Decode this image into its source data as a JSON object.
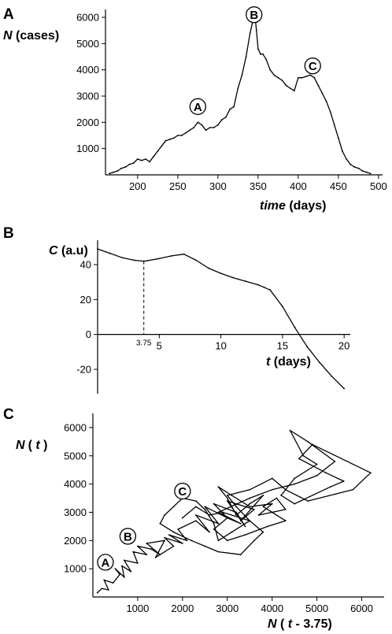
{
  "chart_data": [
    {
      "panel": "A",
      "type": "line",
      "ylabel_var": "N",
      "ylabel_rest": " (cases)",
      "xlabel_var": "time",
      "xlabel_rest": " (days)",
      "xlim": [
        160,
        505
      ],
      "ylim": [
        0,
        6300
      ],
      "xticks": [
        200,
        250,
        300,
        350,
        400,
        450,
        500
      ],
      "yticks": [
        1000,
        2000,
        3000,
        4000,
        5000,
        6000
      ],
      "markers": [
        {
          "label": "A",
          "x": 275,
          "y": 2600
        },
        {
          "label": "B",
          "x": 345,
          "y": 6100
        },
        {
          "label": "C",
          "x": 418,
          "y": 4150
        }
      ],
      "x": [
        165,
        170,
        175,
        180,
        185,
        190,
        195,
        200,
        205,
        210,
        215,
        220,
        225,
        230,
        235,
        240,
        245,
        250,
        255,
        260,
        265,
        270,
        275,
        280,
        285,
        290,
        295,
        300,
        305,
        310,
        315,
        320,
        325,
        330,
        335,
        340,
        343,
        346,
        348,
        350,
        353,
        356,
        360,
        365,
        370,
        375,
        380,
        385,
        390,
        395,
        400,
        405,
        410,
        415,
        420,
        425,
        430,
        435,
        440,
        445,
        450,
        455,
        460,
        465,
        470,
        475,
        480,
        485,
        490
      ],
      "series": [
        {
          "values": [
            50,
            100,
            150,
            250,
            300,
            400,
            450,
            600,
            550,
            600,
            500,
            700,
            900,
            1100,
            1300,
            1350,
            1400,
            1500,
            1500,
            1600,
            1700,
            1800,
            2000,
            1900,
            1700,
            1800,
            1800,
            1900,
            2100,
            2200,
            2500,
            2600,
            3300,
            3800,
            4500,
            5400,
            5800,
            6100,
            5500,
            4800,
            4600,
            4600,
            4400,
            4000,
            3800,
            3700,
            3600,
            3400,
            3300,
            3200,
            3700,
            3700,
            3750,
            3800,
            3700,
            3400,
            3100,
            2800,
            2400,
            1900,
            1400,
            900,
            600,
            400,
            300,
            250,
            150,
            100,
            50
          ]
        }
      ]
    },
    {
      "panel": "B",
      "type": "line",
      "ylabel_var": "C",
      "ylabel_rest": " (a.u)",
      "xlabel_var": "t",
      "xlabel_rest": " (days)",
      "xlim": [
        0,
        20.5
      ],
      "ylim": [
        -34,
        54
      ],
      "xticks": [
        5,
        10,
        15,
        20
      ],
      "yticks": [
        -20,
        0,
        20,
        40
      ],
      "annotation": {
        "x": 3.75,
        "label": "3.75"
      },
      "x": [
        0,
        1,
        2,
        3,
        3.75,
        4,
        5,
        6,
        7,
        8,
        9,
        10,
        11,
        12,
        13,
        13.5,
        14,
        15,
        16,
        17,
        18,
        19,
        20
      ],
      "series": [
        {
          "values": [
            49,
            46.5,
            44,
            42.5,
            42,
            42.2,
            43.5,
            45,
            46,
            42.5,
            38,
            35,
            32.5,
            30.5,
            28.5,
            27,
            25.5,
            16,
            4,
            -7,
            -16,
            -24,
            -31
          ]
        }
      ]
    },
    {
      "panel": "C",
      "type": "line",
      "ylabel_var": "N",
      "ylabel_paren": "( ",
      "ylabel_t": "t",
      "ylabel_close": " )",
      "xlabel_var": "N",
      "xlabel_paren": " ( ",
      "xlabel_t": "t",
      "xlabel_rest": " - 3.75)",
      "xlim": [
        0,
        6500
      ],
      "ylim": [
        0,
        6500
      ],
      "xticks": [
        1000,
        2000,
        3000,
        4000,
        5000,
        6000
      ],
      "yticks": [
        1000,
        2000,
        3000,
        4000,
        5000,
        6000
      ],
      "markers": [
        {
          "label": "A",
          "x": 280,
          "y": 1230
        },
        {
          "label": "B",
          "x": 780,
          "y": 2150
        },
        {
          "label": "C",
          "x": 2000,
          "y": 3750
        }
      ],
      "x": [
        100,
        200,
        350,
        250,
        450,
        600,
        500,
        700,
        650,
        850,
        700,
        1000,
        900,
        1200,
        1000,
        1300,
        1500,
        1200,
        1600,
        1400,
        1800,
        1600,
        2000,
        1700,
        2100,
        1900,
        2300,
        2600,
        2300,
        2800,
        2500,
        3000,
        2700,
        3200,
        3400,
        3000,
        3600,
        3300,
        3800,
        3500,
        3200,
        3000,
        2800,
        3100,
        3500,
        4000,
        3700,
        4300,
        4100,
        3800,
        4300,
        3900,
        3400,
        3000,
        2700,
        3000,
        3300,
        2800,
        3500,
        4000,
        4500,
        5000,
        5400,
        4800,
        4400,
        4700,
        5000,
        4500,
        4200,
        4500,
        5300,
        5600,
        5200,
        4600,
        4900,
        6200,
        5800,
        4800,
        4300,
        4000,
        3500,
        3000,
        3200,
        3500,
        3100,
        2800,
        2700,
        2500,
        2300,
        2000,
        1800,
        1600,
        1500,
        1800,
        2200,
        2500,
        2800,
        3300,
        3600,
        3800,
        3500,
        2900,
        2600,
        2300,
        2000
      ],
      "series": [
        {
          "values": [
            150,
            300,
            250,
            600,
            500,
            800,
            1000,
            700,
            1100,
            900,
            1300,
            1200,
            1600,
            1500,
            1800,
            1700,
            1500,
            1900,
            2000,
            1400,
            1800,
            2100,
            1900,
            2200,
            2000,
            2400,
            2700,
            2300,
            2900,
            2600,
            3200,
            2800,
            3300,
            3000,
            2500,
            3400,
            3100,
            2700,
            3600,
            3300,
            2900,
            3500,
            3900,
            3600,
            3200,
            3300,
            2900,
            3100,
            3500,
            3200,
            2700,
            2500,
            2200,
            2000,
            2400,
            2800,
            2600,
            3000,
            3500,
            3800,
            4000,
            4300,
            4800,
            5500,
            5900,
            5000,
            4700,
            4200,
            3600,
            3300,
            3900,
            4100,
            4400,
            4900,
            5400,
            4400,
            3800,
            3400,
            3800,
            4200,
            3800,
            3600,
            3200,
            2700,
            2300,
            2000,
            2600,
            3100,
            3400,
            3500,
            3200,
            2900,
            2600,
            2300,
            2000,
            1800,
            1600,
            1500,
            2000,
            2300,
            2700,
            3000,
            2900,
            3200,
            2800
          ]
        }
      ]
    }
  ]
}
